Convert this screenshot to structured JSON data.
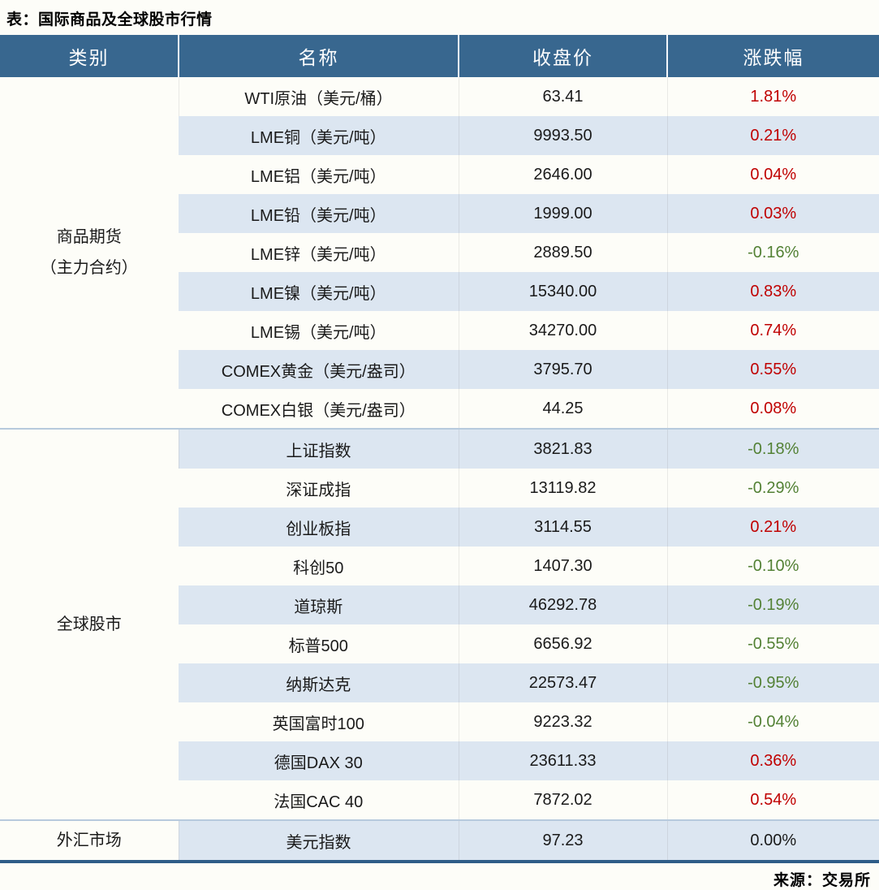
{
  "title": "表：国际商品及全球股市行情",
  "source": "来源：交易所",
  "colors": {
    "header_bg": "#38678f",
    "header_text": "#ffffff",
    "stripe_blue": "#dce6f1",
    "row_white": "#fdfdf8",
    "up_red": "#c00000",
    "down_green": "#538135",
    "flat_black": "#1a1a1a",
    "table_bottom_border": "#2e5d88",
    "group_separator": "#b7cadd"
  },
  "chart_data": {
    "type": "table",
    "title": "表：国际商品及全球股市行情",
    "headers": [
      "类别",
      "名称",
      "收盘价",
      "涨跌幅"
    ],
    "groups": [
      {
        "category_lines": [
          "商品期货",
          "（主力合约）"
        ],
        "rows": [
          {
            "name": "WTI原油（美元/桶）",
            "close": "63.41",
            "change": "1.81%",
            "direction": "up"
          },
          {
            "name": "LME铜（美元/吨）",
            "close": "9993.50",
            "change": "0.21%",
            "direction": "up"
          },
          {
            "name": "LME铝（美元/吨）",
            "close": "2646.00",
            "change": "0.04%",
            "direction": "up"
          },
          {
            "name": "LME铅（美元/吨）",
            "close": "1999.00",
            "change": "0.03%",
            "direction": "up"
          },
          {
            "name": "LME锌（美元/吨）",
            "close": "2889.50",
            "change": "-0.16%",
            "direction": "down"
          },
          {
            "name": "LME镍（美元/吨）",
            "close": "15340.00",
            "change": "0.83%",
            "direction": "up"
          },
          {
            "name": "LME锡（美元/吨）",
            "close": "34270.00",
            "change": "0.74%",
            "direction": "up"
          },
          {
            "name": "COMEX黄金（美元/盎司）",
            "close": "3795.70",
            "change": "0.55%",
            "direction": "up"
          },
          {
            "name": "COMEX白银（美元/盎司）",
            "close": "44.25",
            "change": "0.08%",
            "direction": "up"
          }
        ]
      },
      {
        "category_lines": [
          "全球股市"
        ],
        "rows": [
          {
            "name": "上证指数",
            "close": "3821.83",
            "change": "-0.18%",
            "direction": "down"
          },
          {
            "name": "深证成指",
            "close": "13119.82",
            "change": "-0.29%",
            "direction": "down"
          },
          {
            "name": "创业板指",
            "close": "3114.55",
            "change": "0.21%",
            "direction": "up"
          },
          {
            "name": "科创50",
            "close": "1407.30",
            "change": "-0.10%",
            "direction": "down"
          },
          {
            "name": "道琼斯",
            "close": "46292.78",
            "change": "-0.19%",
            "direction": "down"
          },
          {
            "name": "标普500",
            "close": "6656.92",
            "change": "-0.55%",
            "direction": "down"
          },
          {
            "name": "纳斯达克",
            "close": "22573.47",
            "change": "-0.95%",
            "direction": "down"
          },
          {
            "name": "英国富时100",
            "close": "9223.32",
            "change": "-0.04%",
            "direction": "down"
          },
          {
            "name": "德国DAX 30",
            "close": "23611.33",
            "change": "0.36%",
            "direction": "up"
          },
          {
            "name": "法国CAC 40",
            "close": "7872.02",
            "change": "0.54%",
            "direction": "up"
          }
        ]
      },
      {
        "category_lines": [
          "外汇市场"
        ],
        "rows": [
          {
            "name": "美元指数",
            "close": "97.23",
            "change": "0.00%",
            "direction": "flat"
          }
        ]
      }
    ]
  }
}
